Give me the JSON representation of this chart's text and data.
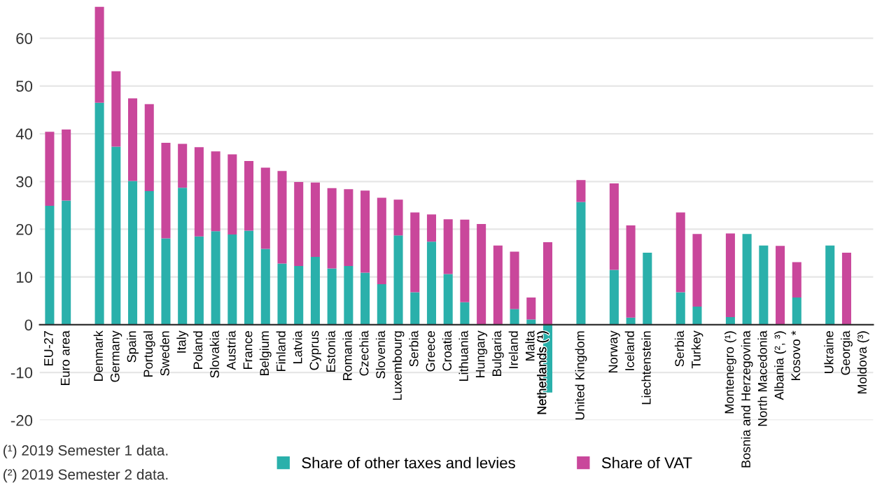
{
  "chart_data": {
    "type": "bar",
    "stacked": true,
    "categories": [
      "EU-27",
      "Euro area",
      null,
      "Denmark",
      "Germany",
      "Spain",
      "Portugal",
      "Sweden",
      "Italy",
      "Poland",
      "Slovakia",
      "Austria",
      "France",
      "Belgium",
      "Finland",
      "Latvia",
      "Cyprus",
      "Estonia",
      "Romania",
      "Czechia",
      "Slovenia",
      "Luxembourg",
      "Serbia",
      "Greece",
      "Croatia",
      "Lithuania",
      "Hungary",
      "Bulgaria",
      "Ireland",
      "Malta",
      "Netherlands (¹)",
      null,
      "United Kingdom",
      null,
      "Norway",
      "Iceland",
      "Liechtenstein",
      null,
      "Serbia",
      "Turkey",
      null,
      "Montenegro (¹)",
      "Bosnia and Herzegovina",
      "North Macedonia",
      "Albania (², ³)",
      "Kosovo *",
      null,
      "Ukraine",
      "Georgia",
      "Moldova (³)"
    ],
    "series": [
      {
        "name": "Share of other taxes and levies",
        "color": "#2ab0ab",
        "values": [
          24.9,
          26.0,
          null,
          46.5,
          37.3,
          30.1,
          28.0,
          18.1,
          28.7,
          18.5,
          19.6,
          18.9,
          19.7,
          15.9,
          12.8,
          12.3,
          14.2,
          11.8,
          12.3,
          10.9,
          8.5,
          18.7,
          6.8,
          17.4,
          10.6,
          4.7,
          0,
          0,
          3.3,
          1.1,
          -14.2,
          null,
          25.7,
          null,
          11.5,
          1.5,
          15.1,
          null,
          6.8,
          3.8,
          null,
          1.6,
          19.0,
          16.6,
          0,
          5.7,
          null,
          16.6,
          0,
          null
        ]
      },
      {
        "name": "Share of VAT",
        "color": "#c9479b",
        "values": [
          15.5,
          14.9,
          null,
          20.1,
          15.8,
          17.3,
          18.2,
          20.0,
          9.2,
          18.7,
          16.7,
          16.8,
          14.6,
          17.0,
          19.4,
          17.6,
          15.6,
          16.8,
          16.1,
          17.2,
          18.1,
          7.5,
          16.7,
          5.7,
          11.5,
          17.3,
          21.1,
          16.6,
          12.0,
          4.6,
          17.3,
          null,
          4.6,
          null,
          18.1,
          19.3,
          0,
          null,
          16.7,
          15.2,
          null,
          17.5,
          0,
          0,
          16.5,
          7.4,
          null,
          0,
          15.1,
          null
        ]
      }
    ],
    "ylim": [
      -20,
      67
    ],
    "yticks": [
      -20,
      -10,
      0,
      10,
      20,
      30,
      40,
      50,
      60
    ],
    "grid": "y",
    "legend": "bottom",
    "annotations": [
      "(¹) 2019 Semester 1 data.",
      "(²) 2019 Semester 2 data."
    ]
  }
}
